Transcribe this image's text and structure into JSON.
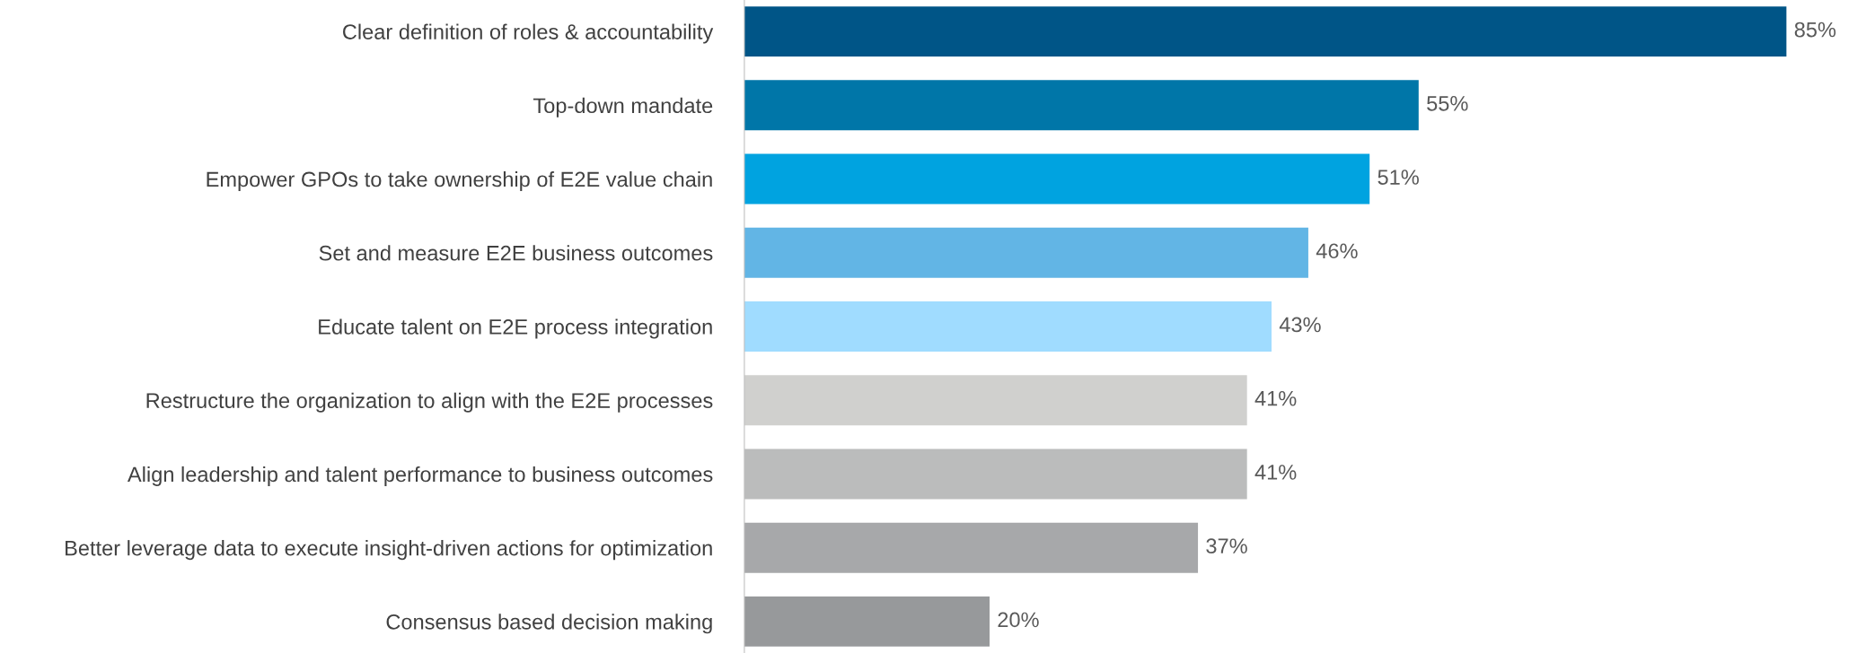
{
  "chart_data": {
    "type": "bar",
    "orientation": "horizontal",
    "categories": [
      "Clear definition of roles & accountability",
      "Top-down mandate",
      "Empower GPOs to take ownership of E2E value chain",
      "Set and measure E2E business outcomes",
      "Educate talent on E2E process integration",
      "Restructure the organization to align with the E2E processes",
      "Align leadership and talent performance to business outcomes",
      "Better leverage data to execute insight-driven actions for optimization",
      "Consensus based decision making"
    ],
    "values": [
      85,
      55,
      51,
      46,
      43,
      41,
      41,
      37,
      20
    ],
    "colors": [
      "#005587",
      "#0076a8",
      "#00a3e0",
      "#62b5e5",
      "#a0dcff",
      "#d0d0ce",
      "#bbbcbc",
      "#a7a8aa",
      "#97999b"
    ],
    "value_labels": [
      "85%",
      "55%",
      "51%",
      "46%",
      "43%",
      "41%",
      "41%",
      "37%",
      "20%"
    ],
    "grid": false,
    "legend": false
  }
}
